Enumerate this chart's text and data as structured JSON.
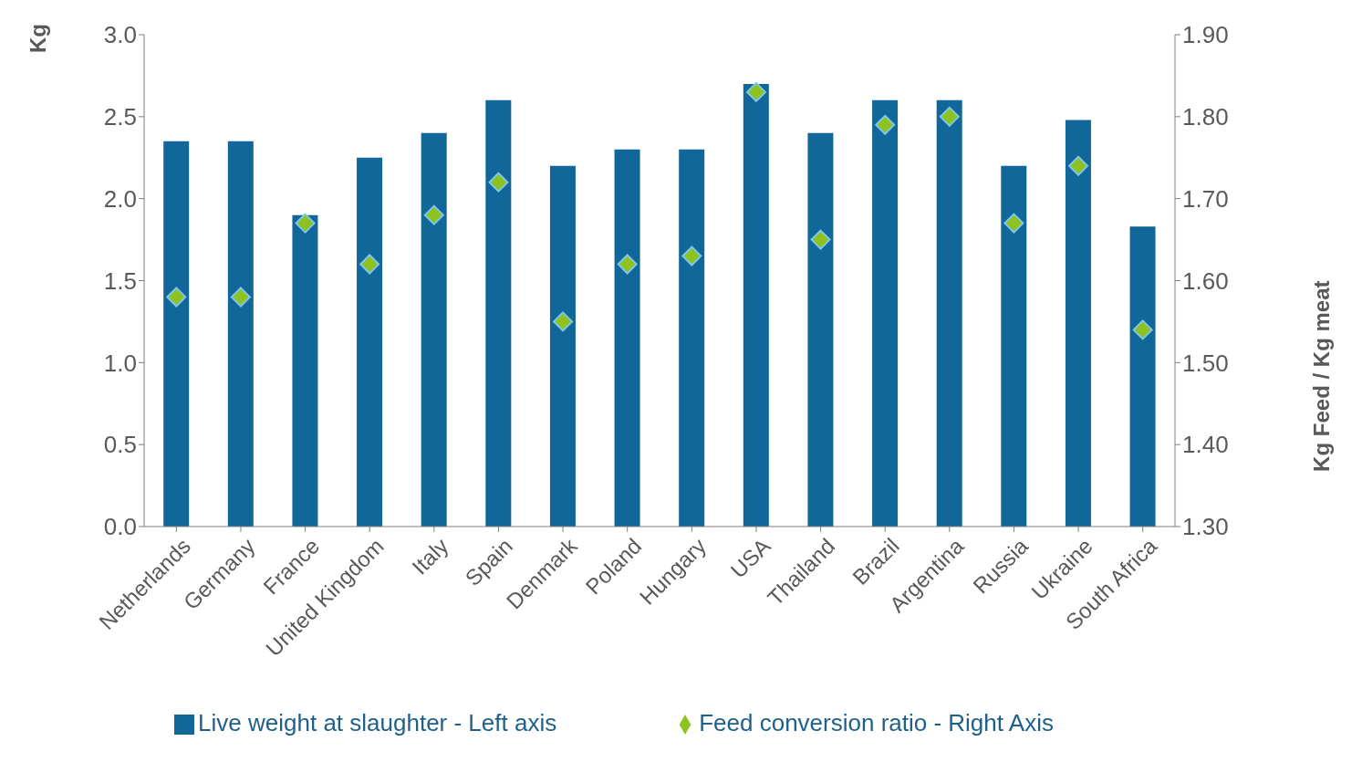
{
  "chart_data": {
    "type": "bar",
    "categories": [
      "Netherlands",
      "Germany",
      "France",
      "United Kingdom",
      "Italy",
      "Spain",
      "Denmark",
      "Poland",
      "Hungary",
      "USA",
      "Thailand",
      "Brazil",
      "Argentina",
      "Russia",
      "Ukraine",
      "South Africa"
    ],
    "series": [
      {
        "name": "Live weight at slaughter - Left axis",
        "color": "#11669a",
        "values": [
          2.35,
          2.35,
          1.9,
          2.25,
          2.4,
          2.6,
          2.2,
          2.3,
          2.3,
          2.7,
          2.4,
          2.6,
          2.6,
          2.2,
          2.48,
          1.83
        ]
      },
      {
        "name": "Feed conversion ratio - Right Axis",
        "type": "scatter",
        "axis": "y2",
        "color": "#8dc21f",
        "values": [
          1.58,
          1.58,
          1.67,
          1.62,
          1.68,
          1.72,
          1.55,
          1.62,
          1.63,
          1.83,
          1.65,
          1.79,
          1.8,
          1.67,
          1.74,
          1.54
        ]
      }
    ],
    "ylabel": "Kg",
    "y2label": "Kg Feed / Kg meat",
    "ylim": [
      0,
      3
    ],
    "yticks": [
      {
        "value": 0,
        "label": "0.0"
      },
      {
        "value": 0.5,
        "label": "0.5"
      },
      {
        "value": 1,
        "label": "1.0"
      },
      {
        "value": 1.5,
        "label": "1.5"
      },
      {
        "value": 2,
        "label": "2.0"
      },
      {
        "value": 2.5,
        "label": "2.5"
      },
      {
        "value": 3,
        "label": "3.0"
      }
    ],
    "y2lim": [
      1.3,
      1.9
    ],
    "y2ticks": [
      {
        "value": 1.3,
        "label": "1.30"
      },
      {
        "value": 1.4,
        "label": "1.40"
      },
      {
        "value": 1.5,
        "label": "1.50"
      },
      {
        "value": 1.6,
        "label": "1.60"
      },
      {
        "value": 1.7,
        "label": "1.70"
      },
      {
        "value": 1.8,
        "label": "1.80"
      },
      {
        "value": 1.9,
        "label": "1.90"
      }
    ],
    "grid": false,
    "legend": "bottom",
    "marker": "diamond"
  }
}
